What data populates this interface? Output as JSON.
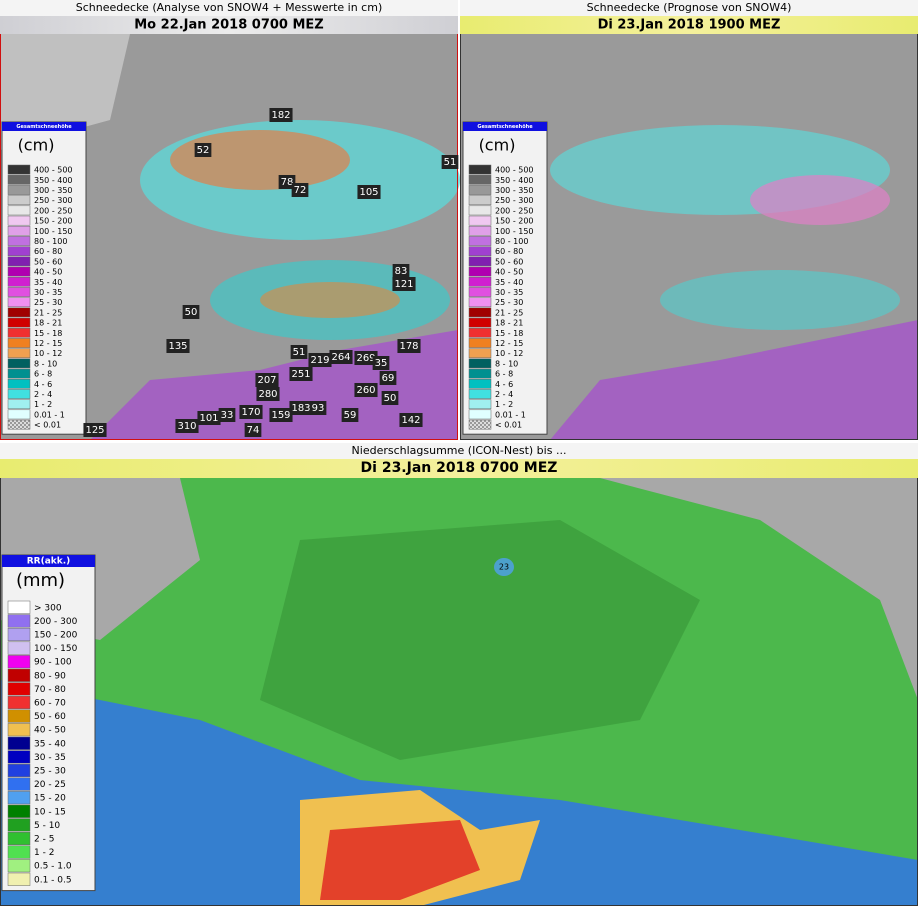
{
  "panels": [
    {
      "title": "Schneedecke (Analyse von SNOW4 + Messwerte in cm)",
      "subtitle": "Mo 22.Jan 2018 0700 MEZ",
      "legend": {
        "title": "Gesamtschneehöhe",
        "unit": "(cm)",
        "items": [
          {
            "label": "400 - 500",
            "color": "#333333"
          },
          {
            "label": "350 - 400",
            "color": "#666666"
          },
          {
            "label": "300 - 350",
            "color": "#999999"
          },
          {
            "label": "250 - 300",
            "color": "#cccccc"
          },
          {
            "label": "200 - 250",
            "color": "#e8e8e8"
          },
          {
            "label": "150 - 200",
            "color": "#f0c8f0"
          },
          {
            "label": "100 - 150",
            "color": "#e0a0e8"
          },
          {
            "label": "80 - 100",
            "color": "#c070e0"
          },
          {
            "label": "60 - 80",
            "color": "#a040d0"
          },
          {
            "label": "50 - 60",
            "color": "#8020b0"
          },
          {
            "label": "40 - 50",
            "color": "#b000b0"
          },
          {
            "label": "35 - 40",
            "color": "#d020d0"
          },
          {
            "label": "30 - 35",
            "color": "#e050e0"
          },
          {
            "label": "25 - 30",
            "color": "#f090f0"
          },
          {
            "label": "21 - 25",
            "color": "#a00000"
          },
          {
            "label": "18 - 21",
            "color": "#d00000"
          },
          {
            "label": "15 - 18",
            "color": "#f03030"
          },
          {
            "label": "12 - 15",
            "color": "#f08020"
          },
          {
            "label": "10 - 12",
            "color": "#f0a050"
          },
          {
            "label": "8 - 10",
            "color": "#006060"
          },
          {
            "label": "6 - 8",
            "color": "#009090"
          },
          {
            "label": "4 - 6",
            "color": "#00c0c0"
          },
          {
            "label": "2 - 4",
            "color": "#40e0e0"
          },
          {
            "label": "1 - 2",
            "color": "#a0f0f0"
          },
          {
            "label": "0.01 - 1",
            "color": "#e0ffff"
          },
          {
            "label": "< 0.01",
            "color": "#bbbbbb"
          }
        ]
      },
      "stations": [
        182,
        52,
        78,
        72,
        105,
        51,
        83,
        121,
        50,
        135,
        178,
        51,
        219,
        264,
        269,
        35,
        251,
        69,
        207,
        280,
        260,
        50,
        170,
        159,
        183,
        93,
        101,
        33,
        59,
        310,
        74,
        142,
        125
      ]
    },
    {
      "title": "Schneedecke (Prognose von SNOW4)",
      "subtitle": "Di 23.Jan 2018 1900 MEZ",
      "legend": {
        "title": "Gesamtschneehöhe",
        "unit": "(cm)",
        "items": [
          {
            "label": "400 - 500",
            "color": "#333333"
          },
          {
            "label": "350 - 400",
            "color": "#666666"
          },
          {
            "label": "300 - 350",
            "color": "#999999"
          },
          {
            "label": "250 - 300",
            "color": "#cccccc"
          },
          {
            "label": "200 - 250",
            "color": "#e8e8e8"
          },
          {
            "label": "150 - 200",
            "color": "#f0c8f0"
          },
          {
            "label": "100 - 150",
            "color": "#e0a0e8"
          },
          {
            "label": "80 - 100",
            "color": "#c070e0"
          },
          {
            "label": "60 - 80",
            "color": "#a040d0"
          },
          {
            "label": "50 - 60",
            "color": "#8020b0"
          },
          {
            "label": "40 - 50",
            "color": "#b000b0"
          },
          {
            "label": "35 - 40",
            "color": "#d020d0"
          },
          {
            "label": "30 - 35",
            "color": "#e050e0"
          },
          {
            "label": "25 - 30",
            "color": "#f090f0"
          },
          {
            "label": "21 - 25",
            "color": "#a00000"
          },
          {
            "label": "18 - 21",
            "color": "#d00000"
          },
          {
            "label": "15 - 18",
            "color": "#f03030"
          },
          {
            "label": "12 - 15",
            "color": "#f08020"
          },
          {
            "label": "10 - 12",
            "color": "#f0a050"
          },
          {
            "label": "8 - 10",
            "color": "#006060"
          },
          {
            "label": "6 - 8",
            "color": "#009090"
          },
          {
            "label": "4 - 6",
            "color": "#00c0c0"
          },
          {
            "label": "2 - 4",
            "color": "#40e0e0"
          },
          {
            "label": "1 - 2",
            "color": "#a0f0f0"
          },
          {
            "label": "0.01 - 1",
            "color": "#e0ffff"
          },
          {
            "label": "< 0.01",
            "color": "#bbbbbb"
          }
        ]
      }
    },
    {
      "title": "Niederschlagsumme (ICON-Nest) bis ...",
      "subtitle": "Di 23.Jan 2018 0700 MEZ",
      "legend": {
        "title": "RR(akk.)",
        "unit": "(mm)",
        "items": [
          {
            "label": "> 300",
            "color": "#ffffff"
          },
          {
            "label": "200 - 300",
            "color": "#9070f0"
          },
          {
            "label": "150 - 200",
            "color": "#b0a0f0"
          },
          {
            "label": "100 - 150",
            "color": "#d0c0f0"
          },
          {
            "label": "90 - 100",
            "color": "#f000f0"
          },
          {
            "label": "80 - 90",
            "color": "#c00000"
          },
          {
            "label": "70 - 80",
            "color": "#e00000"
          },
          {
            "label": "60 - 70",
            "color": "#f03030"
          },
          {
            "label": "50 - 60",
            "color": "#d09000"
          },
          {
            "label": "40 - 50",
            "color": "#f0c050"
          },
          {
            "label": "35 - 40",
            "color": "#000090"
          },
          {
            "label": "30 - 35",
            "color": "#0000c0"
          },
          {
            "label": "25 - 30",
            "color": "#2040e0"
          },
          {
            "label": "20 - 25",
            "color": "#3070f0"
          },
          {
            "label": "15 - 20",
            "color": "#50a0f0"
          },
          {
            "label": "10 - 15",
            "color": "#008000"
          },
          {
            "label": "5 - 10",
            "color": "#20a020"
          },
          {
            "label": "2 - 5",
            "color": "#30c030"
          },
          {
            "label": "1 - 2",
            "color": "#50e050"
          },
          {
            "label": "0.5 - 1.0",
            "color": "#a0f080"
          },
          {
            "label": "0.1 - 0.5",
            "color": "#f0f0b0"
          }
        ]
      },
      "stations": [
        23
      ]
    }
  ]
}
